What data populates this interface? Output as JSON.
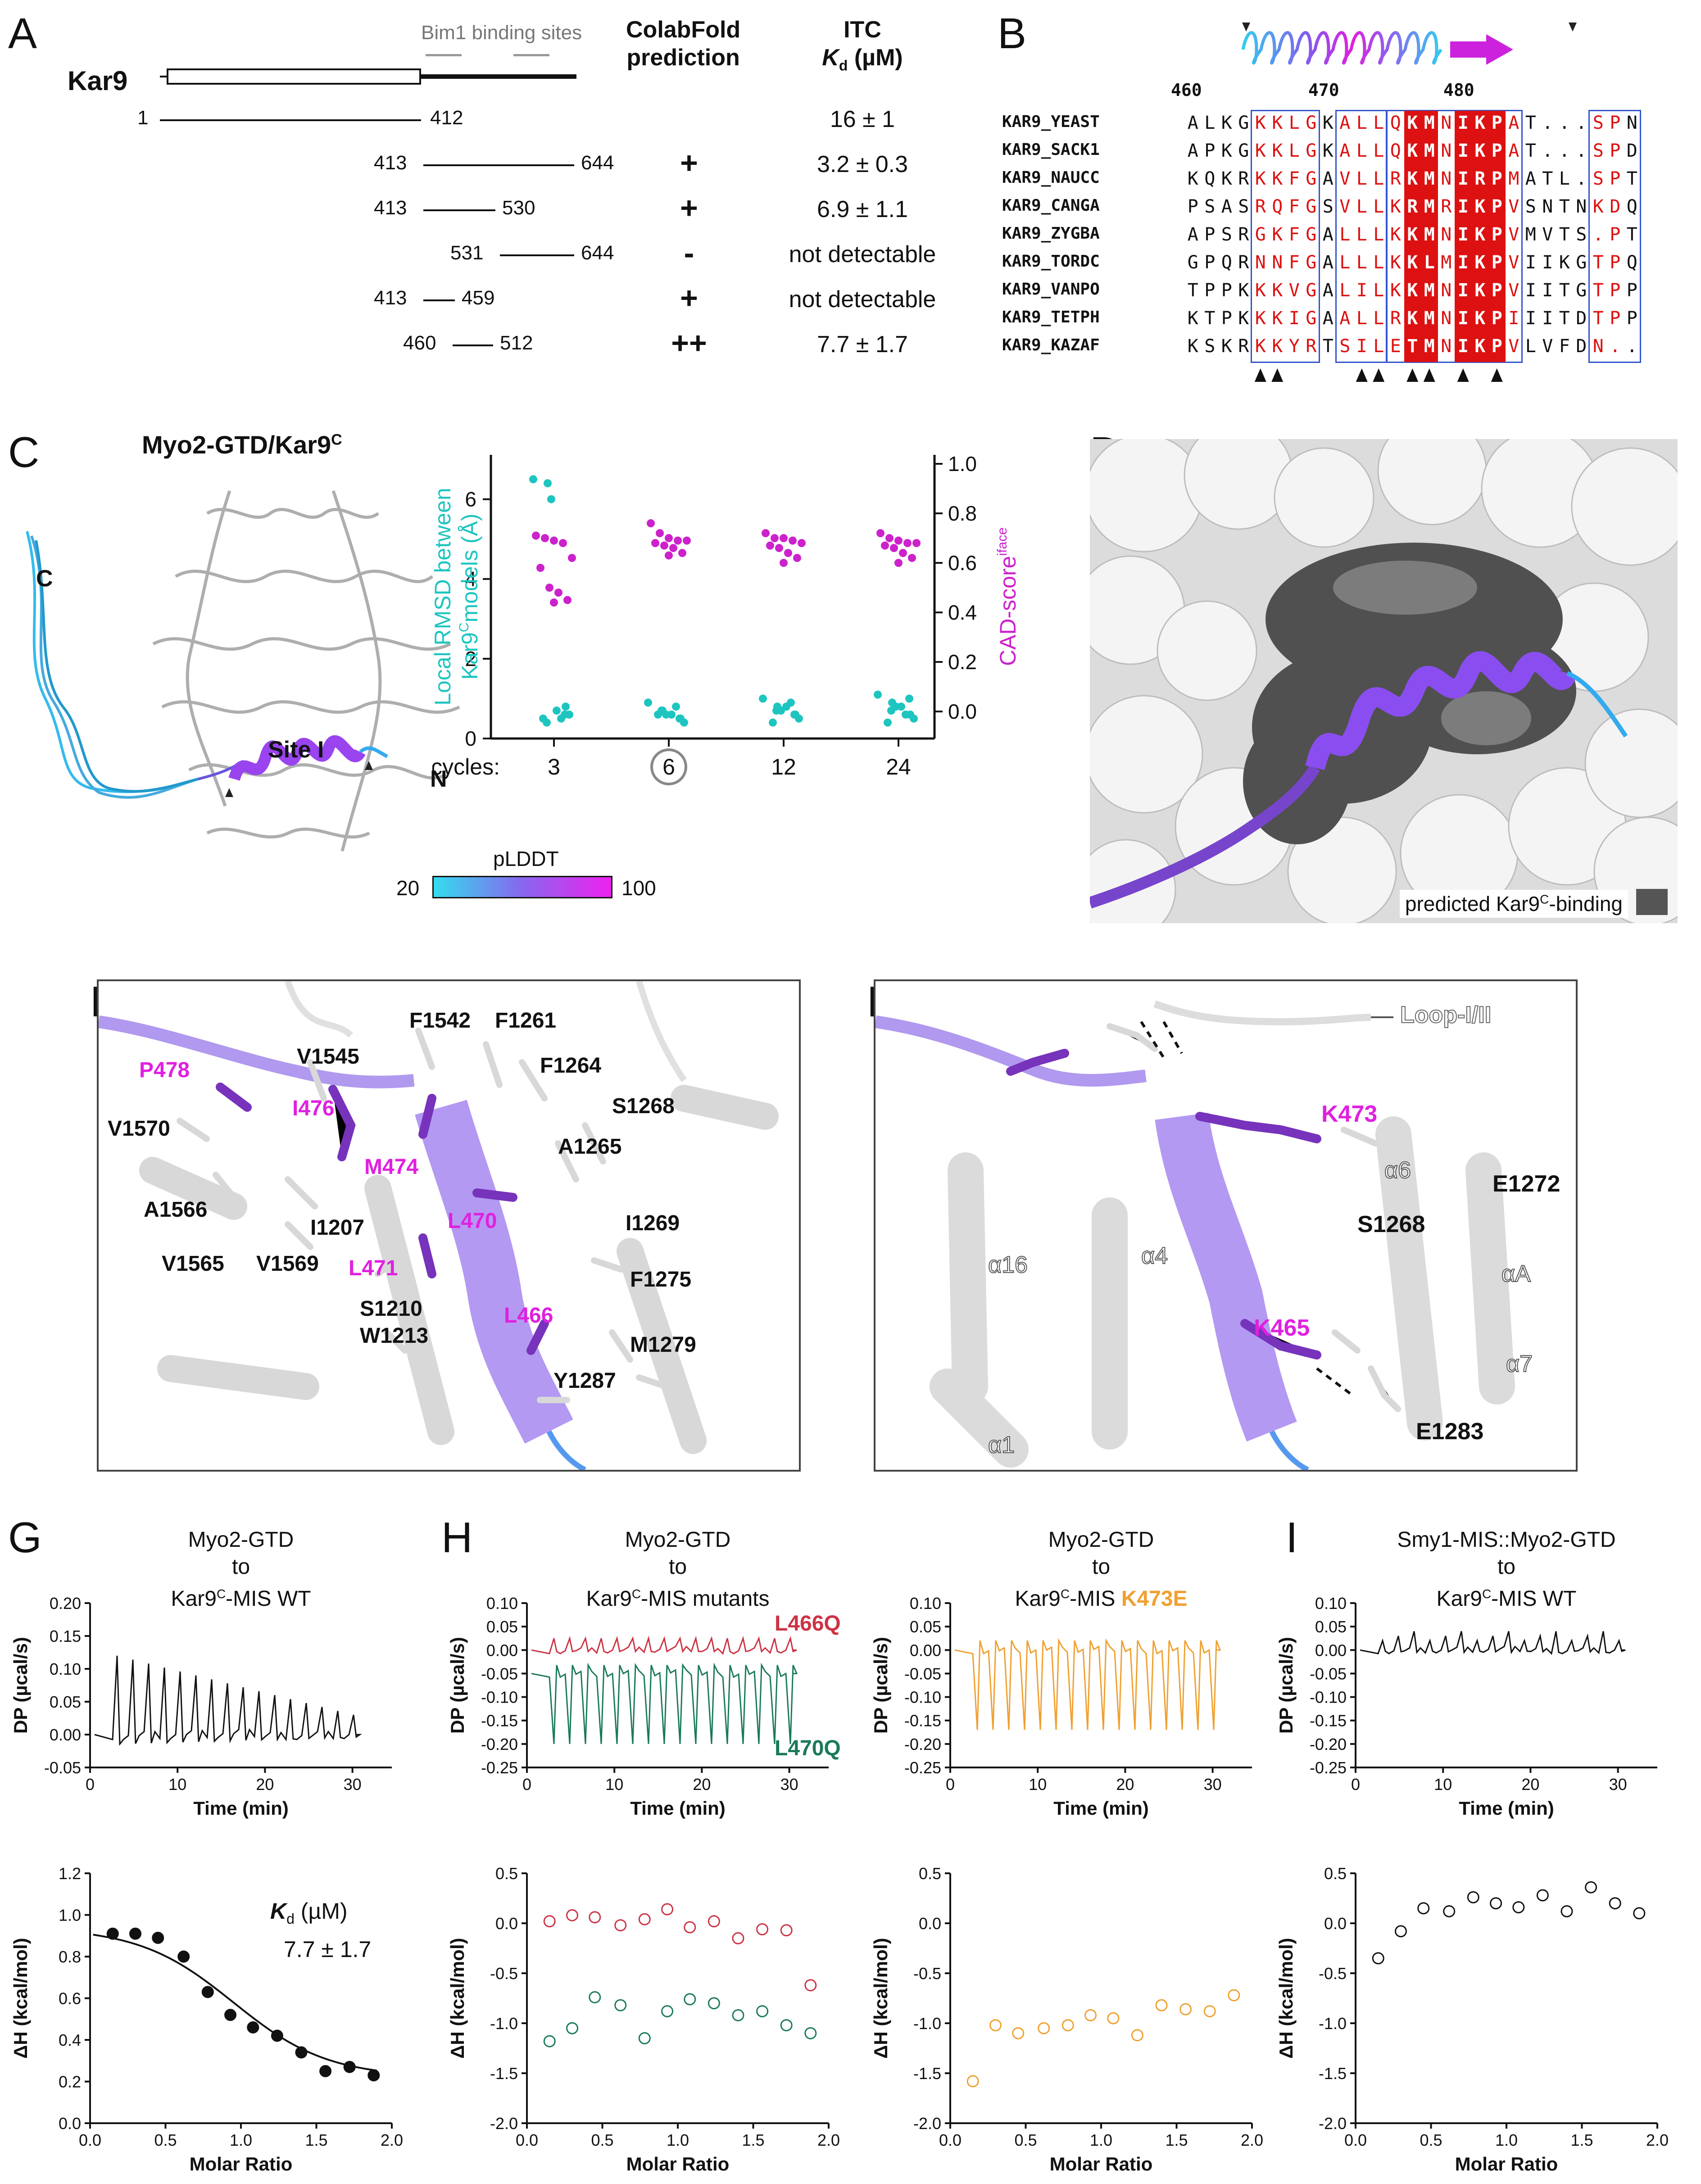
{
  "panels": {
    "A": "A",
    "B": "B",
    "C": "C",
    "D": "D",
    "E": "E",
    "F": "F",
    "G": "G",
    "H": "H",
    "I": "I"
  },
  "panelA": {
    "protein": "Kar9",
    "bim1_label": "Bim1 binding sites",
    "col_colabfold": [
      "ColabFold",
      "prediction"
    ],
    "col_itc": [
      "ITC"
    ],
    "col_kd": "K",
    "col_kd_sub": "d",
    "col_kd_unit": " (µM)",
    "rows": [
      {
        "start": "1",
        "end": "412",
        "pred": "",
        "kd": "16 ± 1"
      },
      {
        "start": "413",
        "end": "644",
        "pred": "+",
        "kd": "3.2 ± 0.3"
      },
      {
        "start": "413",
        "end": "530",
        "pred": "+",
        "kd": "6.9 ± 1.1"
      },
      {
        "start": "531",
        "end": "644",
        "pred": "-",
        "kd": "not detectable"
      },
      {
        "start": "413",
        "end": "459",
        "pred": "+",
        "kd": "not detectable"
      },
      {
        "start": "460",
        "end": "512",
        "pred": "++",
        "kd": "7.7 ± 1.7"
      }
    ]
  },
  "panelB": {
    "ruler": [
      "460",
      "470",
      "480"
    ],
    "names": [
      "KAR9_YEAST",
      "KAR9_SACK1",
      "KAR9_NAUCC",
      "KAR9_CANGA",
      "KAR9_ZYGBA",
      "KAR9_TORDC",
      "KAR9_VANPO",
      "KAR9_TETPH",
      "KAR9_KAZAF"
    ],
    "seqs": [
      "ALKGKKLGKALLQKMNIKPAT...SPN",
      "APKGKKLGKALLQKMNIKPAT...SPD",
      "KQKRKKFGAVLLRKMNIRPMATL.SPT",
      "PSASRQFGSVLLKRMRIKPVSNTNKDQ",
      "APSRGKFGALLLKKMNIKPVMVTS.PT",
      "GPQRNNFGALLLKKLMIKPVIIKGTPQ",
      "TPPKKKVGALILKKMNIKPVIITGTPP",
      "KTPKKKIGAALLRKMNIKPIIITDTPP",
      "KSKRKKYRTSILETMNIKPVLVFDN.."
    ]
  },
  "panelC": {
    "title": "Myo2-GTD/Kar9",
    "title_sup": "C",
    "labels": {
      "c_term": "C",
      "n_term": "N",
      "site": "Site I"
    },
    "pLDDT": "pLDDT",
    "pLDDT_min": "20",
    "pLDDT_max": "100",
    "colors": {
      "low": "#33ddee",
      "high": "#ee22ee"
    }
  },
  "chart_C": {
    "type": "scatter",
    "ylabel_left": [
      "Local RMSD between",
      "Kar9",
      "models (Å)"
    ],
    "ylabel_left_sup": "C",
    "ylabel_right": "CAD-score",
    "ylabel_right_sup": "iface",
    "x_label": "Recycles:",
    "categories": [
      "3",
      "6",
      "12",
      "24"
    ],
    "highlighted": "6",
    "y_left_ticks": [
      "0",
      "2",
      "4",
      "6"
    ],
    "y_right_ticks": [
      "0.0",
      "0.2",
      "0.4",
      "0.6",
      "0.8",
      "1.0"
    ],
    "rmsd_series": [
      [
        6.5,
        6.4,
        6.0,
        0.8,
        0.6,
        0.5,
        0.4,
        0.5,
        0.6,
        0.7
      ],
      [
        0.9,
        0.7,
        0.6,
        0.5,
        0.4,
        0.6,
        0.7,
        0.8,
        0.5,
        0.6
      ],
      [
        1.0,
        0.8,
        0.7,
        0.6,
        0.5,
        0.4,
        0.7,
        0.9,
        0.6,
        0.8
      ],
      [
        1.1,
        0.9,
        0.8,
        0.6,
        0.5,
        0.4,
        0.7,
        0.6,
        1.0,
        0.8
      ]
    ],
    "cad_series": [
      [
        0.71,
        0.7,
        0.69,
        0.68,
        0.62,
        0.58,
        0.5,
        0.48,
        0.45,
        0.44
      ],
      [
        0.76,
        0.72,
        0.7,
        0.69,
        0.69,
        0.68,
        0.67,
        0.66,
        0.64,
        0.63
      ],
      [
        0.72,
        0.7,
        0.7,
        0.69,
        0.68,
        0.67,
        0.66,
        0.64,
        0.62,
        0.6
      ],
      [
        0.72,
        0.7,
        0.69,
        0.68,
        0.68,
        0.67,
        0.66,
        0.64,
        0.62,
        0.6
      ]
    ],
    "colors": {
      "rmsd": "#1ec5c0",
      "cad": "#cc22cc"
    }
  },
  "panelD": {
    "legend": "predicted Kar9",
    "legend_sup": "C",
    "legend_tail": "-binding"
  },
  "panelE": {
    "residues_kar9": [
      "P478",
      "I476",
      "M474",
      "L470",
      "L471",
      "L466"
    ],
    "residues_myo2": [
      "V1545",
      "F1542",
      "F1261",
      "F1264",
      "S1268",
      "A1265",
      "V1570",
      "A1566",
      "I1207",
      "V1565",
      "V1569",
      "S1210",
      "W1213",
      "I1269",
      "F1275",
      "M1279",
      "Y1287"
    ]
  },
  "panelF": {
    "loop": "Loop-I/II",
    "residues_kar9": [
      "K473",
      "K465"
    ],
    "residues_myo2": [
      "E1272",
      "S1268",
      "E1283"
    ],
    "helices": [
      "α6",
      "α16",
      "α4",
      "αA",
      "α7",
      "α1"
    ]
  },
  "itc_G": {
    "title": [
      "Myo2-GTD",
      "to",
      "Kar9"
    ],
    "title_sup": "C",
    "title_tail": "-MIS WT",
    "kd_label": "K",
    "kd_sub": "d",
    "kd_unit": " (µM)",
    "kd_value": "7.7 ± 1.7"
  },
  "itc_H1": {
    "title": [
      "Myo2-GTD",
      "to",
      "Kar9"
    ],
    "title_sup": "C",
    "title_tail": "-MIS mutants",
    "series": [
      "L466Q",
      "L470Q"
    ]
  },
  "itc_H2": {
    "title": [
      "Myo2-GTD",
      "to",
      "Kar9"
    ],
    "title_sup": "C",
    "title_tail": "-MIS ",
    "mutant": "K473E"
  },
  "itc_I": {
    "title": [
      "Smy1-MIS::Myo2-GTD",
      "to",
      "Kar9"
    ],
    "title_sup": "C",
    "title_tail": "-MIS WT"
  },
  "itc_axes": {
    "dp_label": "DP (µcal/s)",
    "time_label": "Time (min)",
    "dh_label": "ΔH (kcal/mol)",
    "molar_label": "Molar Ratio",
    "time_ticks": [
      "0",
      "10",
      "20",
      "30"
    ],
    "molar_ticks": [
      "0.0",
      "0.5",
      "1.0",
      "1.5",
      "2.0"
    ],
    "dp_ticks_G": [
      "0.20",
      "0.15",
      "0.10",
      "0.05",
      "0.00",
      "-0.05"
    ],
    "dp_ticks_H": [
      "0.10",
      "0.05",
      "0.00",
      "-0.05",
      "-0.10",
      "-0.15",
      "-0.20",
      "-0.25"
    ],
    "dh_ticks_G": [
      "1.2",
      "1.0",
      "0.8",
      "0.6",
      "0.4",
      "0.2",
      "0.0"
    ],
    "dh_ticks_H": [
      "0.5",
      "0.0",
      "-0.5",
      "-1.0",
      "-1.5",
      "-2.0"
    ]
  },
  "chart_data": [
    {
      "type": "scatter",
      "panel": "G",
      "x": [
        0.15,
        0.3,
        0.45,
        0.62,
        0.78,
        0.93,
        1.08,
        1.24,
        1.4,
        1.56,
        1.72,
        1.88
      ],
      "y": [
        0.91,
        0.91,
        0.89,
        0.8,
        0.63,
        0.52,
        0.46,
        0.42,
        0.34,
        0.25,
        0.27,
        0.23
      ],
      "fit": true,
      "color": "#111111",
      "xlabel": "Molar Ratio",
      "ylabel": "ΔH (kcal/mol)",
      "ylim": [
        0,
        1.2
      ]
    },
    {
      "type": "scatter",
      "panel": "H1",
      "series": [
        {
          "name": "L466Q",
          "x": [
            0.15,
            0.3,
            0.45,
            0.62,
            0.78,
            0.93,
            1.08,
            1.24,
            1.4,
            1.56,
            1.72,
            1.88
          ],
          "y": [
            0.02,
            0.08,
            0.06,
            -0.02,
            0.04,
            0.14,
            -0.04,
            0.02,
            -0.15,
            -0.06,
            -0.07,
            -0.62
          ],
          "color": "#cc3344"
        },
        {
          "name": "L470Q",
          "x": [
            0.15,
            0.3,
            0.45,
            0.62,
            0.78,
            0.93,
            1.08,
            1.24,
            1.4,
            1.56,
            1.72,
            1.88
          ],
          "y": [
            -1.18,
            -1.05,
            -0.74,
            -0.82,
            -1.15,
            -0.88,
            -0.76,
            -0.8,
            -0.92,
            -0.88,
            -1.02,
            -1.1
          ],
          "color": "#1a7a5a"
        }
      ],
      "xlabel": "Molar Ratio",
      "ylabel": "ΔH (kcal/mol)",
      "ylim": [
        -2,
        0.5
      ]
    },
    {
      "type": "scatter",
      "panel": "H2",
      "series": [
        {
          "name": "K473E",
          "x": [
            0.15,
            0.3,
            0.45,
            0.62,
            0.78,
            0.93,
            1.08,
            1.24,
            1.4,
            1.56,
            1.72,
            1.88
          ],
          "y": [
            -1.58,
            -1.02,
            -1.1,
            -1.05,
            -1.02,
            -0.92,
            -0.95,
            -1.12,
            -0.82,
            -0.86,
            -0.88,
            -0.72
          ],
          "color": "#f0a030"
        }
      ],
      "xlabel": "Molar Ratio",
      "ylabel": "ΔH (kcal/mol)",
      "ylim": [
        -2,
        0.5
      ]
    },
    {
      "type": "scatter",
      "panel": "I",
      "x": [
        0.15,
        0.3,
        0.45,
        0.62,
        0.78,
        0.93,
        1.08,
        1.24,
        1.4,
        1.56,
        1.72,
        1.88
      ],
      "y": [
        -0.35,
        -0.08,
        0.15,
        0.12,
        0.26,
        0.2,
        0.16,
        0.28,
        0.12,
        0.36,
        0.2,
        0.1
      ],
      "color": "#111111",
      "xlabel": "Molar Ratio",
      "ylabel": "ΔH (kcal/mol)",
      "ylim": [
        -2,
        0.5
      ]
    }
  ]
}
